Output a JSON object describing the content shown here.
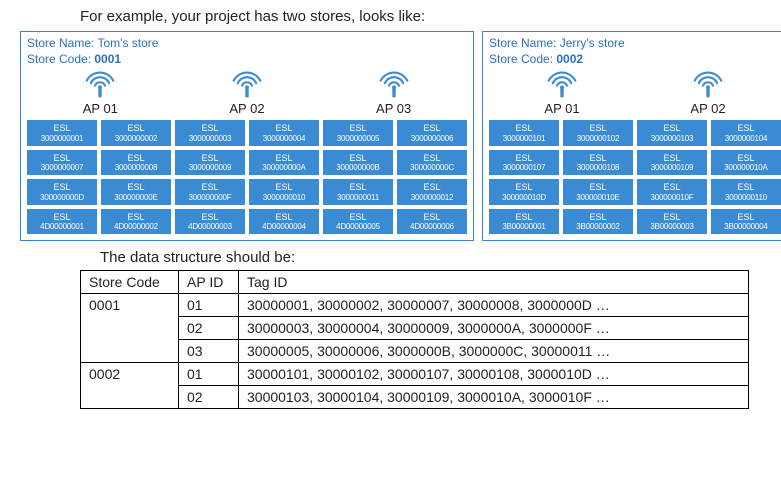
{
  "intro_text": "For example, your project has two stores, looks like:",
  "subhead_text": "The data structure should be:",
  "colors": {
    "store_border": "#3b82d1",
    "store_header_text": "#2a6fbf",
    "esl_bg": "#3b8bd4",
    "esl_text": "#ffffff",
    "ap_icon_color": "#3b8bd4",
    "table_border": "#000000",
    "body_text": "#222222",
    "background": "#ffffff"
  },
  "store_name_prefix": "Store Name: ",
  "store_code_prefix": "Store Code: ",
  "esl_label": "ESL",
  "stores": [
    {
      "name": "Tom's store",
      "code": "0001",
      "cols": 6,
      "aps": [
        {
          "label": "AP 01"
        },
        {
          "label": "AP 02"
        },
        {
          "label": "AP 03"
        }
      ],
      "tags": [
        "3000000001",
        "3000000002",
        "3000000003",
        "3000000004",
        "3000000005",
        "3000000006",
        "3000000007",
        "3000000008",
        "3000000009",
        "300000000A",
        "300000000B",
        "300000000C",
        "300000000D",
        "300000000E",
        "300000000F",
        "3000000010",
        "3000000011",
        "3000000012",
        "4D00000001",
        "4D00000002",
        "4D00000003",
        "4D00000004",
        "4D00000005",
        "4D00000006"
      ]
    },
    {
      "name": "Jerry's store",
      "code": "0002",
      "cols": 4,
      "aps": [
        {
          "label": "AP 01"
        },
        {
          "label": "AP 02"
        }
      ],
      "tags": [
        "3000000101",
        "3000000102",
        "3000000103",
        "3000000104",
        "3000000107",
        "3000000108",
        "3000000109",
        "300000010A",
        "300000010D",
        "300000010E",
        "300000010F",
        "3000000110",
        "3B00000001",
        "3B00000002",
        "3B00000003",
        "3B00000004"
      ]
    }
  ],
  "table": {
    "columns": [
      "Store Code",
      "AP ID",
      "Tag ID"
    ],
    "rows": [
      {
        "store": "0001",
        "ap": "01",
        "tag": "30000001, 30000002, 30000007, 30000008, 3000000D …"
      },
      {
        "store": "",
        "ap": "02",
        "tag": "30000003, 30000004, 30000009, 3000000A, 3000000F …"
      },
      {
        "store": "",
        "ap": "03",
        "tag": "30000005, 30000006, 3000000B, 3000000C, 30000011 …"
      },
      {
        "store": "0002",
        "ap": "01",
        "tag": "30000101, 30000102, 30000107, 30000108, 3000010D …"
      },
      {
        "store": "",
        "ap": "02",
        "tag": "30000103, 30000104, 30000109, 3000010A, 3000010F …"
      }
    ],
    "rowspans": [
      3,
      0,
      0,
      2,
      0
    ]
  }
}
